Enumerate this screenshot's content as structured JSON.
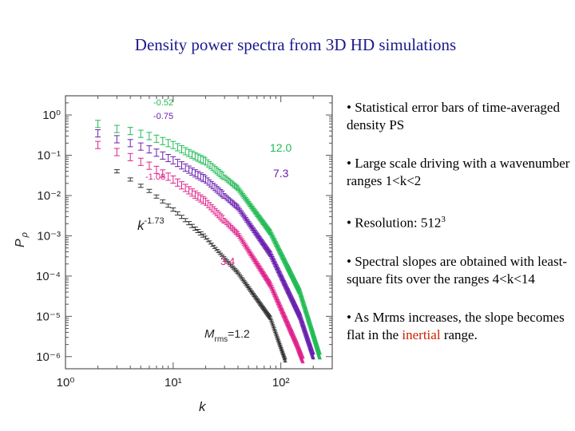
{
  "slide": {
    "title": "Density power spectra from 3D HD simulations",
    "bullets": [
      {
        "text": "• Statistical error bars of time-averaged density PS"
      },
      {
        "text": "• Large scale driving with a wavenumber ranges 1<k<2"
      },
      {
        "text_before": "• Resolution: 512",
        "sup": "3"
      },
      {
        "text": "• Spectral slopes are obtained with least-square fits over the ranges 4<k<14"
      },
      {
        "text_before": "• As Mrms increases, the slope becomes flat in the ",
        "highlight": "inertial",
        "text_after": " range."
      }
    ],
    "colors": {
      "title": "#1a1a8c",
      "highlight": "#cc2200"
    }
  },
  "chart_data": {
    "type": "line",
    "xscale": "log",
    "yscale": "log",
    "xlim": [
      1,
      300
    ],
    "ylim": [
      5e-07,
      3
    ],
    "xlabel": "k",
    "ylabel": "P",
    "ylabel_sub": "ρ",
    "xticks": [
      {
        "value": 1,
        "label": "10⁰"
      },
      {
        "value": 10,
        "label": "10¹"
      },
      {
        "value": 100,
        "label": "10²"
      }
    ],
    "yticks": [
      {
        "value": 1,
        "label": "10⁰"
      },
      {
        "value": 0.1,
        "label": "10⁻¹"
      },
      {
        "value": 0.01,
        "label": "10⁻²"
      },
      {
        "value": 0.001,
        "label": "10⁻³"
      },
      {
        "value": 0.0001,
        "label": "10⁻⁴"
      },
      {
        "value": 1e-05,
        "label": "10⁻⁵"
      },
      {
        "value": 1e-06,
        "label": "10⁻⁶"
      }
    ],
    "series": [
      {
        "name": "12.0",
        "color": "#22bb55",
        "slope": "-0.52",
        "points": [
          [
            2,
            0.6
          ],
          [
            3,
            0.45
          ],
          [
            4,
            0.4
          ],
          [
            6,
            0.3
          ],
          [
            10,
            0.18
          ],
          [
            20,
            0.07
          ],
          [
            40,
            0.015
          ],
          [
            80,
            0.0012
          ],
          [
            150,
            4e-05
          ],
          [
            230,
            1e-06
          ]
        ]
      },
      {
        "name": "7.3",
        "color": "#6a1fb0",
        "slope": "-0.75",
        "points": [
          [
            2,
            0.35
          ],
          [
            3,
            0.25
          ],
          [
            4,
            0.2
          ],
          [
            6,
            0.14
          ],
          [
            10,
            0.075
          ],
          [
            20,
            0.025
          ],
          [
            40,
            0.005
          ],
          [
            80,
            0.00035
          ],
          [
            150,
            1e-05
          ],
          [
            200,
            1e-06
          ]
        ]
      },
      {
        "name": "3.4",
        "color": "#e0208a",
        "slope": "-1.08",
        "points": [
          [
            2,
            0.18
          ],
          [
            3,
            0.12
          ],
          [
            4,
            0.09
          ],
          [
            6,
            0.055
          ],
          [
            10,
            0.025
          ],
          [
            20,
            0.007
          ],
          [
            40,
            0.0011
          ],
          [
            80,
            6e-05
          ],
          [
            140,
            2e-06
          ],
          [
            160,
            8e-07
          ]
        ]
      },
      {
        "name": "M_rms=1.2",
        "color": "#333333",
        "slope": "k^-1.73",
        "points": [
          [
            3,
            0.04
          ],
          [
            4,
            0.025
          ],
          [
            6,
            0.013
          ],
          [
            10,
            0.0045
          ],
          [
            20,
            0.0009
          ],
          [
            40,
            0.00012
          ],
          [
            80,
            9e-06
          ],
          [
            110,
            8e-07
          ]
        ]
      }
    ],
    "annotations": {
      "slopes": [
        "-0.52",
        "-0.75",
        "-1.08"
      ],
      "slope_k": "k",
      "slope_exp": "-1.73",
      "mach_labels": [
        "12.0",
        "7.3",
        "3.4"
      ],
      "mrms_prefix": "M",
      "mrms_sub": "rms",
      "mrms_value": "=1.2"
    }
  }
}
